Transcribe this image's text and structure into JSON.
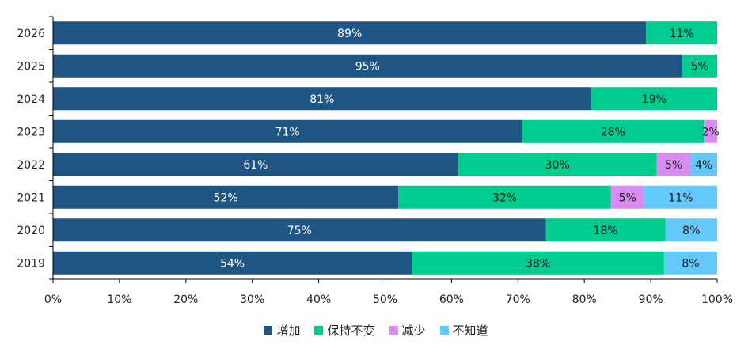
{
  "chart_data": {
    "type": "bar",
    "orientation": "horizontal",
    "stacked": true,
    "categories": [
      "2026",
      "2025",
      "2024",
      "2023",
      "2022",
      "2021",
      "2020",
      "2019"
    ],
    "series": [
      {
        "name": "增加",
        "color": "#1f5582",
        "values": [
          89,
          95,
          81,
          71,
          61,
          52,
          75,
          54
        ],
        "labels": [
          "89%",
          "95%",
          "81%",
          "71%",
          "61%",
          "52%",
          "75%",
          "54%"
        ],
        "segment_percent": [
          89.3,
          94.7,
          81,
          70.6,
          61,
          52,
          74.2,
          54
        ]
      },
      {
        "name": "保持不变",
        "color": "#00cc8f",
        "values": [
          11,
          5,
          19,
          28,
          30,
          32,
          18,
          38
        ],
        "labels": [
          "11%",
          "5%",
          "19%",
          "28%",
          "30%",
          "32%",
          "18%",
          "38%"
        ],
        "segment_percent": [
          10.7,
          5.3,
          19,
          27.4,
          29.9,
          32,
          18,
          38
        ]
      },
      {
        "name": "减少",
        "color": "#d98cf2",
        "values": [
          null,
          null,
          null,
          2,
          5,
          5,
          null,
          null
        ],
        "labels": [
          "",
          "",
          "",
          "2%",
          "5%",
          "5%",
          "",
          ""
        ],
        "segment_percent": [
          0,
          0,
          0,
          2,
          5.1,
          5,
          0,
          0
        ]
      },
      {
        "name": "不知道",
        "color": "#64c8fa",
        "values": [
          null,
          null,
          null,
          null,
          4,
          11,
          8,
          8
        ],
        "labels": [
          "",
          "",
          "",
          "",
          "4%",
          "11%",
          "8%",
          "8%"
        ],
        "segment_percent": [
          0,
          0,
          0,
          0,
          4,
          11,
          7.8,
          8
        ]
      }
    ],
    "xlim": [
      0,
      100
    ],
    "x_ticks": [
      "0%",
      "10%",
      "20%",
      "30%",
      "40%",
      "50%",
      "60%",
      "70%",
      "80%",
      "90%",
      "100%"
    ],
    "grid": false,
    "legend_position": "bottom"
  }
}
